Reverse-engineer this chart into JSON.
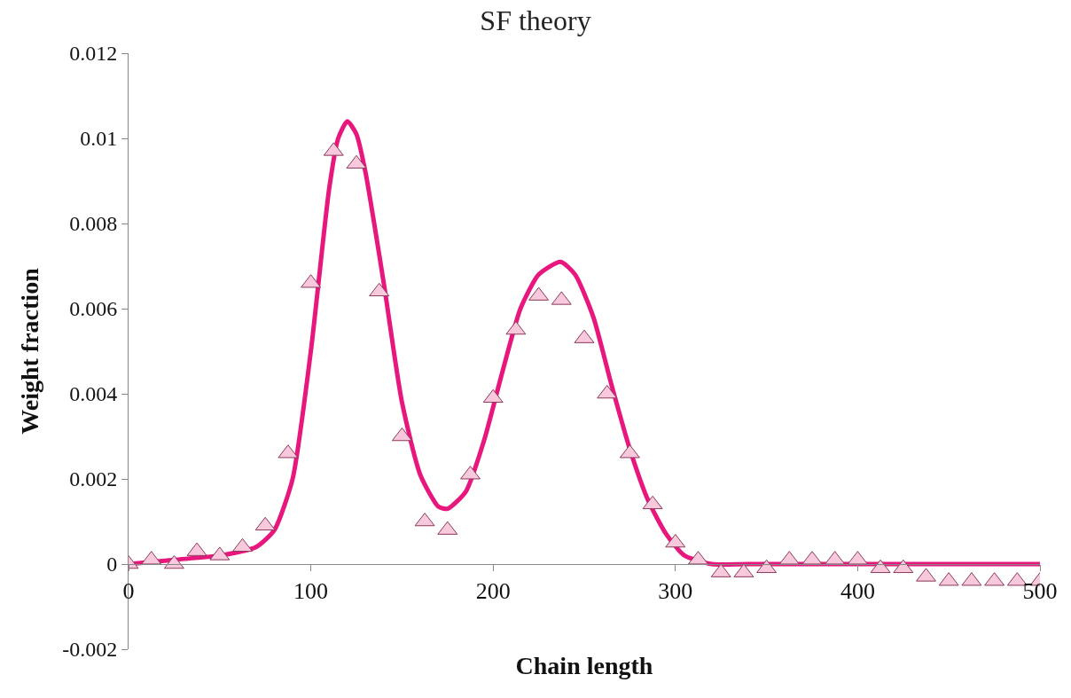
{
  "chart_data": {
    "type": "scatter",
    "title": "SF theory",
    "xlabel": "Chain length",
    "ylabel": "Weight fraction",
    "xlim": [
      0,
      500
    ],
    "xticks": [
      0,
      100,
      200,
      300,
      400,
      500
    ],
    "ylim": [
      -0.002,
      0.012
    ],
    "yticks": [
      -0.002,
      0,
      0.002,
      0.004,
      0.006,
      0.008,
      0.01,
      0.012
    ],
    "grid": false,
    "marker": "triangle",
    "line_style": "solid",
    "series": [
      {
        "type": "line",
        "marker": "none",
        "color": "#e8177d",
        "x": [
          0,
          25,
          50,
          70,
          80,
          90,
          100,
          110,
          115,
          120,
          125,
          130,
          140,
          150,
          160,
          170,
          175,
          185,
          195,
          205,
          215,
          225,
          237,
          245,
          255,
          265,
          275,
          285,
          295,
          305,
          320,
          340,
          500
        ],
        "values": [
          0,
          0.0001,
          0.0002,
          0.0004,
          0.0008,
          0.002,
          0.005,
          0.0088,
          0.01,
          0.0104,
          0.0101,
          0.0092,
          0.0066,
          0.0038,
          0.0021,
          0.00135,
          0.0013,
          0.0017,
          0.0029,
          0.0045,
          0.006,
          0.0068,
          0.0071,
          0.0068,
          0.0058,
          0.0042,
          0.0027,
          0.0015,
          0.0007,
          0.0002,
          0,
          0,
          0
        ]
      },
      {
        "color": "#f8c8dc",
        "x": [
          0,
          12.5,
          25,
          37.5,
          50,
          62.5,
          75,
          87.5,
          100,
          112.5,
          125,
          137.5,
          150,
          162.5,
          175,
          187.5,
          200,
          212.5,
          225,
          237.5,
          250,
          262.5,
          275,
          287.5,
          300,
          312.5,
          325,
          337.5,
          350,
          362.5,
          375,
          387.5,
          400,
          412.5,
          425,
          437.5,
          450,
          462.5,
          475,
          487.5,
          500
        ],
        "values": [
          0,
          0.0001,
          0,
          0.0003,
          0.0002,
          0.0004,
          0.0009,
          0.0026,
          0.0066,
          0.0097,
          0.0094,
          0.0064,
          0.003,
          0.001,
          0.0008,
          0.0021,
          0.0039,
          0.0055,
          0.0063,
          0.0062,
          0.0053,
          0.004,
          0.0026,
          0.0014,
          0.0005,
          0.0001,
          -0.0002,
          -0.0002,
          -0.0001,
          0.0001,
          0.0001,
          0.0001,
          0.0001,
          -0.0001,
          -0.0001,
          -0.0003,
          -0.0004,
          -0.0004,
          -0.0004,
          -0.0004,
          -0.0004
        ]
      }
    ]
  }
}
